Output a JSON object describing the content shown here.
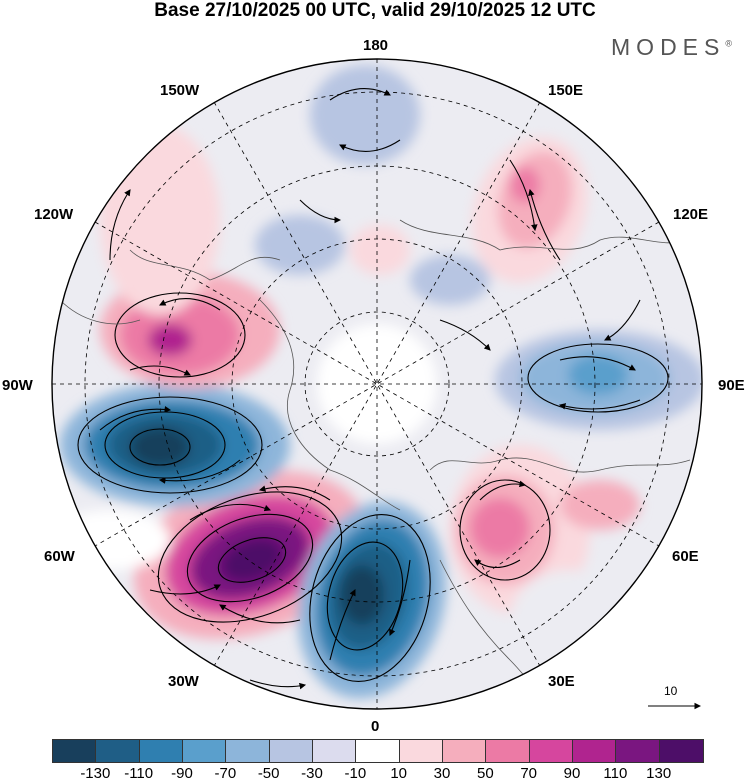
{
  "title": "Base 27/10/2025 00 UTC, valid 29/10/2025 12 UTC",
  "brand": "MODES",
  "brand_mark": "®",
  "longitude_labels": {
    "top": "180",
    "bottom": "0",
    "left": "90W",
    "right": "90E",
    "upper_left_1": "150W",
    "upper_left_2": "120W",
    "upper_right_1": "150E",
    "upper_right_2": "120E",
    "lower_left_1": "60W",
    "lower_left_2": "30W",
    "lower_right_1": "60E",
    "lower_right_2": "30E"
  },
  "reference_vector": {
    "value": "10"
  },
  "colorbar": {
    "ticks": [
      "-130",
      "-110",
      "-90",
      "-70",
      "-50",
      "-30",
      "-10",
      "10",
      "30",
      "50",
      "70",
      "90",
      "110",
      "130"
    ],
    "colors": [
      "#183f5c",
      "#1f5e86",
      "#2f7fb0",
      "#5a9fcc",
      "#8db5da",
      "#b7c5e2",
      "#dcdcee",
      "#ffffff",
      "#fad9de",
      "#f5aebd",
      "#ec7aa5",
      "#d6469e",
      "#b0248f",
      "#7a1680",
      "#4d0e68"
    ]
  },
  "anomalies": [
    {
      "sign": "positive",
      "magnitude": 130,
      "region": "North Atlantic"
    },
    {
      "sign": "negative",
      "magnitude": 130,
      "region": "North Atlantic east"
    },
    {
      "sign": "negative",
      "magnitude": 130,
      "region": "Hudson Bay"
    },
    {
      "sign": "positive",
      "magnitude": 90,
      "region": "Alaska"
    },
    {
      "sign": "negative",
      "magnitude": 90,
      "region": "Siberia"
    },
    {
      "sign": "positive",
      "magnitude": 90,
      "region": "Europe"
    },
    {
      "sign": "positive",
      "magnitude": 50,
      "region": "East Asia"
    },
    {
      "sign": "negative",
      "magnitude": 50,
      "region": "North Pacific"
    }
  ]
}
